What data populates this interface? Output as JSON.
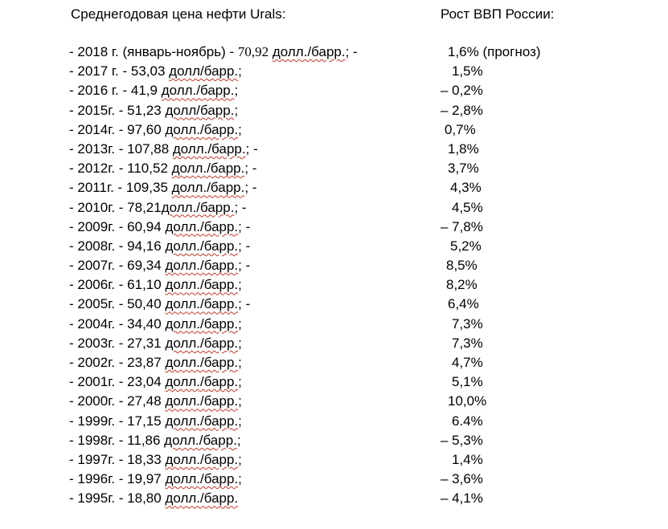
{
  "header": {
    "left": "Среднегодовая цена нефти Urals:",
    "right": "Рост ВВП России:"
  },
  "rows": [
    {
      "pre": "- 2018 г. (январь-ноябрь) - ",
      "num": "70,92",
      "unit": "долл./барр.",
      "post": "; -",
      "gdp": "1,6% (прогноз)"
    },
    {
      "pre": "- 2017 г. - 53,03 ",
      "unit": "долл/барр.",
      "post": ";",
      "gdp": "1,5%"
    },
    {
      "pre": "- 2016 г. - 41,9 ",
      "unit": "долл./барр.",
      "post": ";",
      "gdp": "– 0,2%"
    },
    {
      "pre": "-  2015г. - 51,23 ",
      "unit": "долл/барр.",
      "post": ";",
      "gdp": "– 2,8%"
    },
    {
      "pre": "- 2014г. - 97,60 ",
      "unit": "долл./барр.",
      "post": ";",
      "gdp": "0,7%"
    },
    {
      "pre": "- 2013г. - 107,88 ",
      "unit": "долл./барр.",
      "post": "; -",
      "gdp": "1,8%"
    },
    {
      "pre": "- 2012г. - 110,52 ",
      "unit": "долл./барр.",
      "post": "; -",
      "gdp": "3,7%"
    },
    {
      "pre": "- 2011г. - 109,35 ",
      "unit": "долл./барр.",
      "post": "; -",
      "gdp": "4,3%"
    },
    {
      "pre": "- 2010г. - 78,21",
      "unit": "долл./барр.",
      "post": "; -",
      "gdp": "4,5%"
    },
    {
      "pre": "- 2009г. - 60,94 ",
      "unit": "долл./барр.",
      "post": "; -",
      "gdp": "– 7,8%"
    },
    {
      "pre": "- 2008г. - 94,16 ",
      "unit": "долл./барр.",
      "post": "; -",
      "gdp": "5,2%"
    },
    {
      "pre": "- 2007г. - 69,34 ",
      "unit": "долл./барр.",
      "post": "; -",
      "gdp": "8,5%"
    },
    {
      "pre": " - 2006г. - 61,10 ",
      "unit": "долл./барр.",
      "post": ";",
      "gdp": "8,2%"
    },
    {
      "pre": " -  2005г. - 50,40 ",
      "unit": "долл./барр.",
      "post": "; -",
      "gdp": "6,4%"
    },
    {
      "pre": " -  2004г. - 34,40 ",
      "unit": "долл./барр.",
      "post": ";",
      "gdp": "7,3%"
    },
    {
      "pre": "- 2003г. - 27,31 ",
      "unit": "долл./барр.",
      "post": ";",
      "gdp": "7,3%"
    },
    {
      "pre": " - 2002г. - 23,87 ",
      "unit": "долл./барр.",
      "post": ";",
      "gdp": "4,7%"
    },
    {
      "pre": " - 2001г. - 23,04 ",
      "unit": "долл./барр.",
      "post": ";",
      "gdp": "5,1%"
    },
    {
      "pre": " - 2000г. - 27,48 ",
      "unit": "долл./барр.",
      "post": ";",
      "gdp": "10,0%"
    },
    {
      "pre": " - 1999г. - 17,15 ",
      "unit": "долл./барр.",
      "post": ";",
      "gdp": "6.4%"
    },
    {
      "pre": " - 1998г. - 11,86 ",
      "unit": "долл./барр.",
      "post": ";",
      "gdp": "– 5,3%"
    },
    {
      "pre": " - 1997г. - 18,33 ",
      "unit": "долл./барр.",
      "post": ";",
      "gdp": "1,4%"
    },
    {
      "pre": "- 1996г. - 19,97 ",
      "unit": "долл./барр.",
      "post": ";",
      "gdp": "– 3,6%"
    },
    {
      "pre": "- 1995г. - 18,80 ",
      "unit": "долл./барр.",
      "post": "",
      "gdp": "– 4,1%"
    }
  ],
  "colors": {
    "text": "#000000",
    "spellcheck": "#c0392b",
    "background": "#ffffff"
  }
}
